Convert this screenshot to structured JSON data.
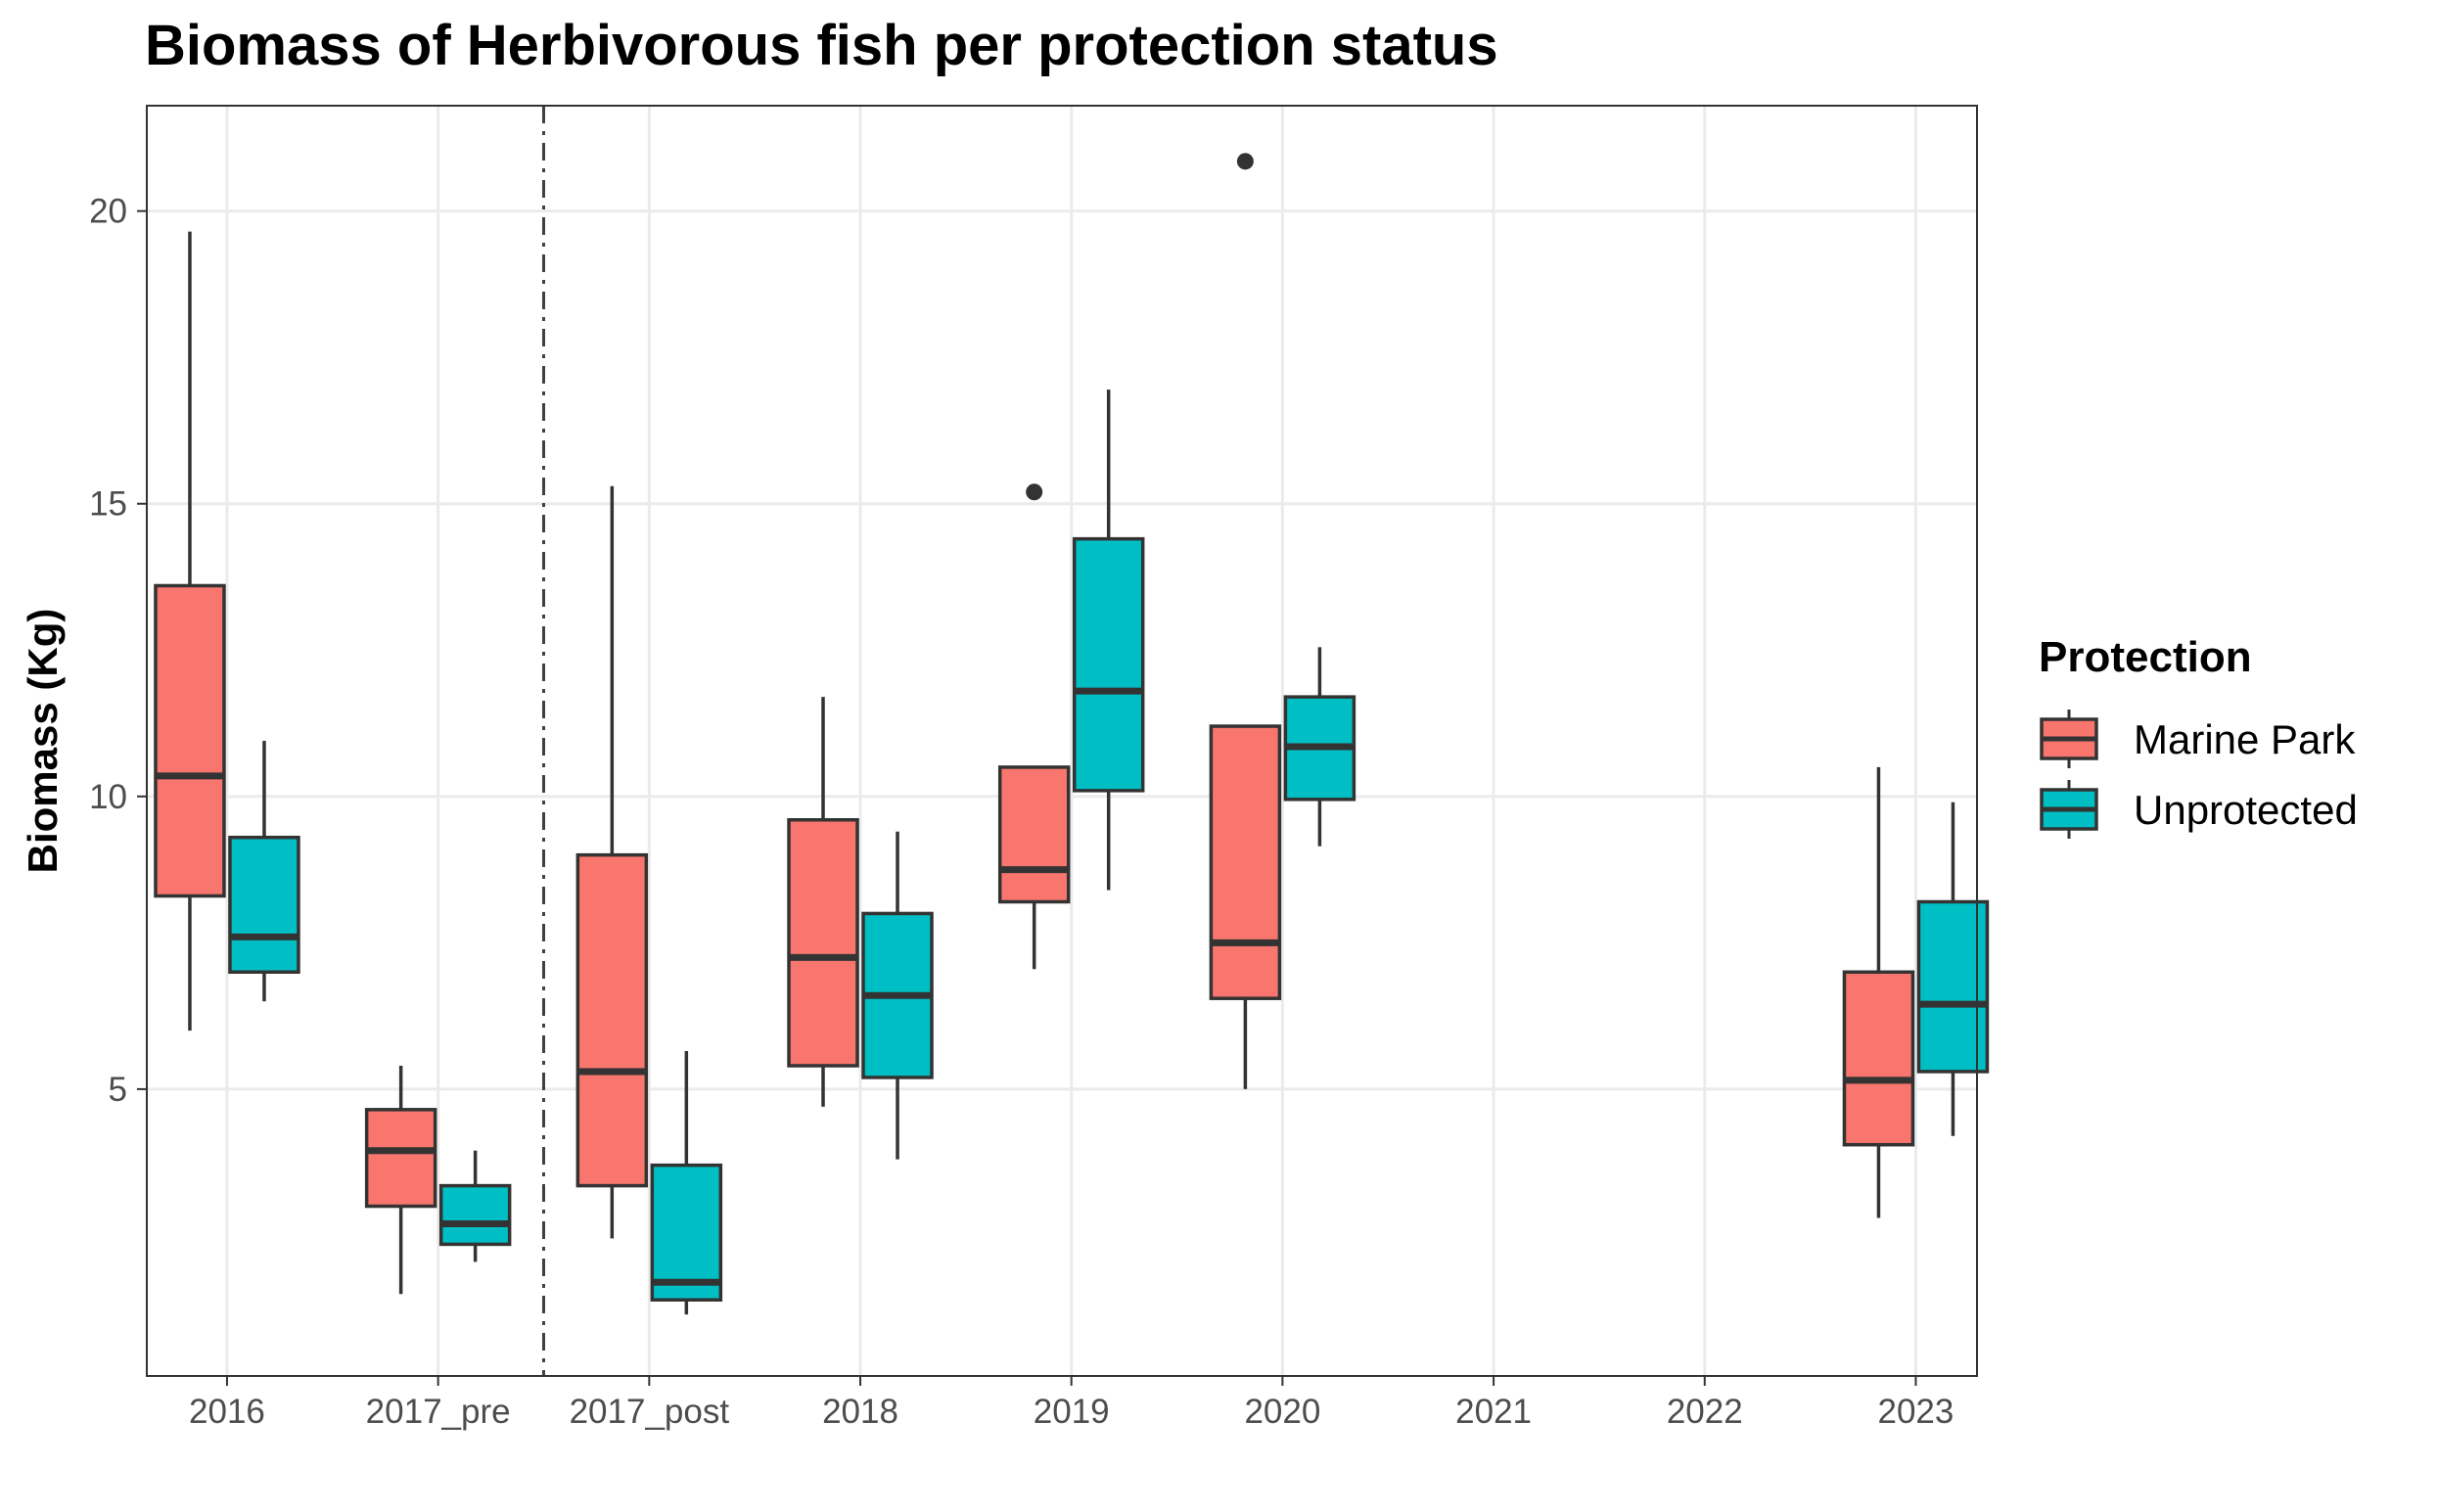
{
  "chart_data": {
    "type": "boxplot",
    "title": "Biomass of Herbivorous fish per protection status",
    "xlabel": "",
    "ylabel": "Biomass (Kg)",
    "ylim": [
      0.1,
      21.8
    ],
    "yticks": [
      5,
      10,
      15,
      20
    ],
    "categories": [
      "2016",
      "2017_pre",
      "2017_post",
      "2018",
      "2019",
      "2020",
      "2021",
      "2022",
      "2023"
    ],
    "grid": true,
    "legend": {
      "title": "Protection",
      "placement": "right"
    },
    "vline": {
      "between": [
        "2017_pre",
        "2017_post"
      ],
      "style": "dashdot"
    },
    "series": [
      {
        "name": "Marine Park",
        "color": "#F8766D",
        "boxes": [
          {
            "category": "2016",
            "min": 6.0,
            "q1": 8.3,
            "median": 10.35,
            "q3": 13.6,
            "max": 19.65,
            "outliers": []
          },
          {
            "category": "2017_pre",
            "min": 1.5,
            "q1": 3.0,
            "median": 3.95,
            "q3": 4.65,
            "max": 5.4,
            "outliers": []
          },
          {
            "category": "2017_post",
            "min": 2.45,
            "q1": 3.35,
            "median": 5.3,
            "q3": 9.0,
            "max": 15.3,
            "outliers": []
          },
          {
            "category": "2018",
            "min": 4.7,
            "q1": 5.4,
            "median": 7.25,
            "q3": 9.6,
            "max": 11.7,
            "outliers": []
          },
          {
            "category": "2019",
            "min": 7.05,
            "q1": 8.2,
            "median": 8.75,
            "q3": 10.5,
            "max": 10.5,
            "outliers": [
              15.2
            ]
          },
          {
            "category": "2020",
            "min": 5.0,
            "q1": 6.55,
            "median": 7.5,
            "q3": 11.2,
            "max": 11.2,
            "outliers": [
              20.85
            ]
          },
          {
            "category": "2023",
            "min": 2.8,
            "q1": 4.05,
            "median": 5.15,
            "q3": 7.0,
            "max": 10.5,
            "outliers": []
          }
        ]
      },
      {
        "name": "Unprotected",
        "color": "#00BFC4",
        "boxes": [
          {
            "category": "2016",
            "min": 6.5,
            "q1": 7.0,
            "median": 7.6,
            "q3": 9.3,
            "max": 10.95,
            "outliers": []
          },
          {
            "category": "2017_pre",
            "min": 2.05,
            "q1": 2.35,
            "median": 2.7,
            "q3": 3.35,
            "max": 3.95,
            "outliers": []
          },
          {
            "category": "2017_post",
            "min": 1.15,
            "q1": 1.4,
            "median": 1.7,
            "q3": 3.7,
            "max": 5.65,
            "outliers": []
          },
          {
            "category": "2018",
            "min": 3.8,
            "q1": 5.2,
            "median": 6.6,
            "q3": 8.0,
            "max": 9.4,
            "outliers": []
          },
          {
            "category": "2019",
            "min": 8.4,
            "q1": 10.1,
            "median": 11.8,
            "q3": 14.4,
            "max": 16.95,
            "outliers": []
          },
          {
            "category": "2020",
            "min": 9.15,
            "q1": 9.95,
            "median": 10.85,
            "q3": 11.7,
            "max": 12.55,
            "outliers": []
          },
          {
            "category": "2023",
            "min": 4.2,
            "q1": 5.3,
            "median": 6.45,
            "q3": 8.2,
            "max": 9.9,
            "outliers": []
          }
        ]
      }
    ]
  }
}
